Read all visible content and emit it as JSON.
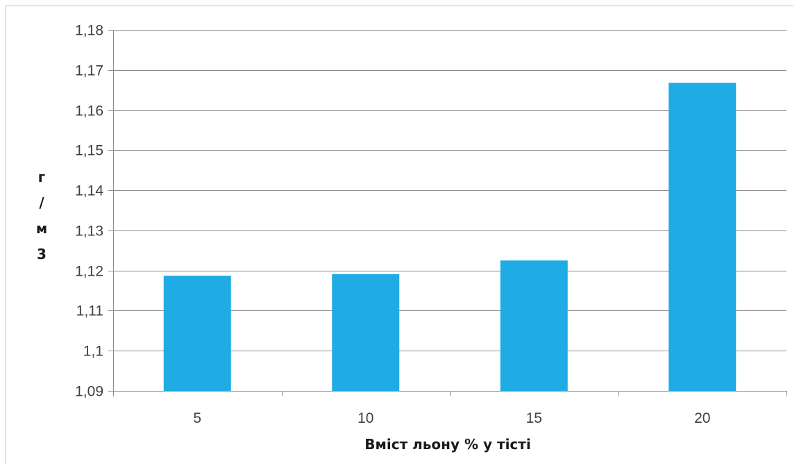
{
  "chart_data": {
    "type": "bar",
    "title": "",
    "xlabel": "Вміст льону % у тісті",
    "ylabel": "г/м3",
    "categories": [
      "5",
      "10",
      "15",
      "20"
    ],
    "series": [
      {
        "values": [
          1.1187,
          1.1191,
          1.1225,
          1.1668
        ]
      }
    ],
    "ylim": [
      1.09,
      1.18
    ],
    "yticks": [
      1.09,
      1.1,
      1.11,
      1.12,
      1.13,
      1.14,
      1.15,
      1.16,
      1.17,
      1.18
    ],
    "ytick_labels": [
      "1,09",
      "1,1",
      "1,11",
      "1,12",
      "1,13",
      "1,14",
      "1,15",
      "1,16",
      "1,17",
      "1,18"
    ],
    "grid": true,
    "legend": "none",
    "bar_color": "#1fabe3",
    "grid_color": "#8c8c8c"
  }
}
